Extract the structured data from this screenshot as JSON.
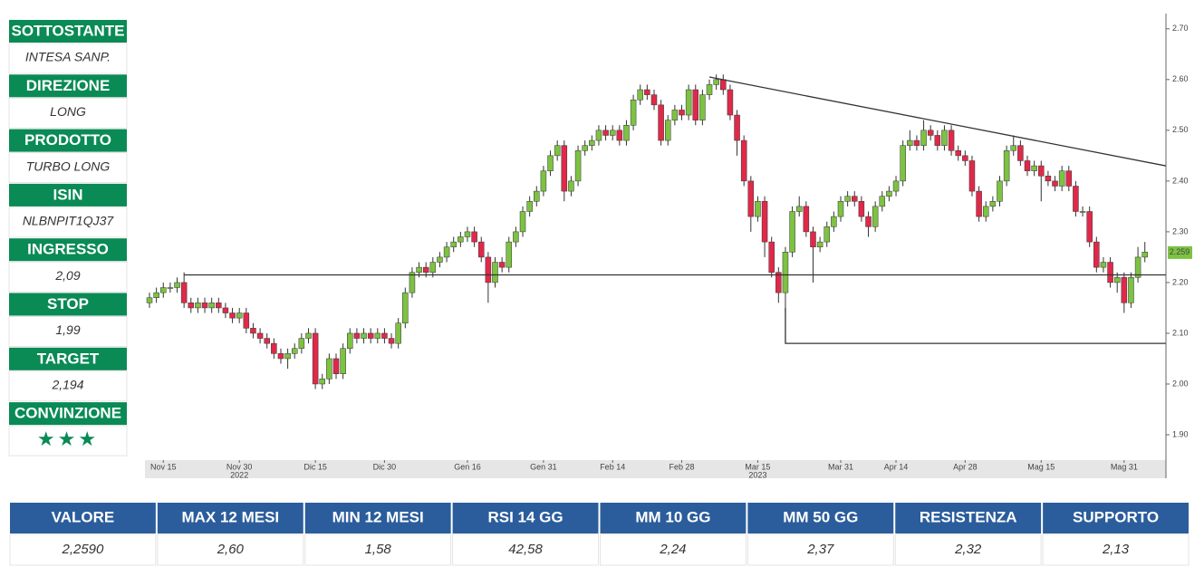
{
  "sidebar": [
    {
      "label": "SOTTOSTANTE",
      "value": "INTESA SANP."
    },
    {
      "label": "DIREZIONE",
      "value": "LONG"
    },
    {
      "label": "PRODOTTO",
      "value": "TURBO LONG"
    },
    {
      "label": "ISIN",
      "value": "NLBNPIT1QJ37"
    },
    {
      "label": "INGRESSO",
      "value": "2,09"
    },
    {
      "label": "STOP",
      "value": "1,99"
    },
    {
      "label": "TARGET",
      "value": "2,194"
    },
    {
      "label": "CONVINZIONE",
      "value": "★★★"
    }
  ],
  "chart_data": {
    "type": "candlestick",
    "categories": [
      null,
      null,
      "Nov 15",
      null,
      null,
      null,
      null,
      null,
      null,
      null,
      null,
      null,
      null,
      "Nov 30",
      null,
      null,
      null,
      null,
      null,
      null,
      null,
      null,
      null,
      null,
      "Dic 15",
      null,
      null,
      null,
      null,
      null,
      null,
      null,
      null,
      null,
      "Dic 30",
      null,
      null,
      null,
      null,
      null,
      null,
      null,
      null,
      null,
      null,
      null,
      "Gen 16",
      null,
      null,
      null,
      null,
      null,
      null,
      null,
      null,
      null,
      null,
      "Gen 31",
      null,
      null,
      null,
      null,
      null,
      null,
      null,
      null,
      null,
      "Feb 14",
      null,
      null,
      null,
      null,
      null,
      null,
      null,
      null,
      null,
      "Feb 28",
      null,
      null,
      null,
      null,
      null,
      null,
      null,
      null,
      null,
      null,
      "Mar 15",
      null,
      null,
      null,
      null,
      null,
      null,
      null,
      null,
      null,
      null,
      null,
      "Mar 31",
      null,
      null,
      null,
      null,
      null,
      null,
      null,
      "Apr 14",
      null,
      null,
      null,
      null,
      null,
      null,
      null,
      null,
      null,
      "Apr 28",
      null,
      null,
      null,
      null,
      null,
      null,
      null,
      null,
      null,
      null,
      "Mag 15",
      null,
      null,
      null,
      null,
      null,
      null,
      null,
      null,
      null,
      null,
      null,
      "Mag 31",
      null,
      null,
      null
    ],
    "year_labels": [
      {
        "index": 13,
        "label": "2022"
      },
      {
        "index": 88,
        "label": "2023"
      }
    ],
    "open": [
      2.16,
      2.17,
      2.18,
      2.19,
      2.19,
      2.2,
      2.16,
      2.15,
      2.16,
      2.15,
      2.16,
      2.15,
      2.14,
      2.13,
      2.14,
      2.11,
      2.1,
      2.09,
      2.08,
      2.06,
      2.05,
      2.06,
      2.07,
      2.09,
      2.1,
      2.0,
      2.01,
      2.05,
      2.02,
      2.07,
      2.1,
      2.09,
      2.1,
      2.09,
      2.1,
      2.09,
      2.08,
      2.12,
      2.18,
      2.22,
      2.23,
      2.22,
      2.24,
      2.25,
      2.27,
      2.28,
      2.29,
      2.3,
      2.28,
      2.25,
      2.2,
      2.24,
      2.23,
      2.28,
      2.3,
      2.34,
      2.36,
      2.38,
      2.42,
      2.45,
      2.47,
      2.38,
      2.4,
      2.46,
      2.47,
      2.48,
      2.5,
      2.49,
      2.5,
      2.48,
      2.51,
      2.56,
      2.58,
      2.57,
      2.55,
      2.48,
      2.52,
      2.54,
      2.53,
      2.58,
      2.52,
      2.57,
      2.59,
      2.6,
      2.58,
      2.53,
      2.48,
      2.4,
      2.33,
      2.36,
      2.28,
      2.22,
      2.18,
      2.26,
      2.34,
      2.35,
      2.3,
      2.27,
      2.28,
      2.31,
      2.33,
      2.36,
      2.37,
      2.36,
      2.33,
      2.31,
      2.35,
      2.37,
      2.38,
      2.4,
      2.47,
      2.48,
      2.47,
      2.5,
      2.49,
      2.47,
      2.5,
      2.46,
      2.45,
      2.44,
      2.38,
      2.33,
      2.35,
      2.36,
      2.4,
      2.46,
      2.47,
      2.44,
      2.42,
      2.43,
      2.41,
      2.4,
      2.39,
      2.42,
      2.39,
      2.34,
      2.34,
      2.28,
      2.23,
      2.24,
      2.2,
      2.21,
      2.16,
      2.21,
      2.25
    ],
    "high": [
      2.18,
      2.19,
      2.2,
      2.2,
      2.21,
      2.22,
      2.17,
      2.17,
      2.17,
      2.17,
      2.17,
      2.16,
      2.15,
      2.15,
      2.15,
      2.12,
      2.11,
      2.1,
      2.09,
      2.07,
      2.07,
      2.08,
      2.1,
      2.11,
      2.11,
      2.02,
      2.06,
      2.06,
      2.08,
      2.11,
      2.11,
      2.11,
      2.11,
      2.11,
      2.11,
      2.1,
      2.13,
      2.19,
      2.23,
      2.24,
      2.24,
      2.25,
      2.26,
      2.28,
      2.29,
      2.3,
      2.31,
      2.31,
      2.29,
      2.26,
      2.25,
      2.25,
      2.29,
      2.31,
      2.35,
      2.37,
      2.39,
      2.43,
      2.46,
      2.48,
      2.48,
      2.41,
      2.47,
      2.48,
      2.49,
      2.51,
      2.51,
      2.51,
      2.51,
      2.52,
      2.57,
      2.59,
      2.59,
      2.58,
      2.56,
      2.53,
      2.55,
      2.55,
      2.59,
      2.59,
      2.58,
      2.6,
      2.61,
      2.61,
      2.59,
      2.54,
      2.49,
      2.41,
      2.37,
      2.37,
      2.29,
      2.23,
      2.27,
      2.35,
      2.37,
      2.36,
      2.31,
      2.29,
      2.32,
      2.34,
      2.37,
      2.38,
      2.38,
      2.37,
      2.34,
      2.36,
      2.38,
      2.39,
      2.41,
      2.48,
      2.5,
      2.49,
      2.52,
      2.51,
      2.5,
      2.51,
      2.51,
      2.47,
      2.46,
      2.45,
      2.39,
      2.36,
      2.37,
      2.41,
      2.47,
      2.49,
      2.48,
      2.45,
      2.44,
      2.44,
      2.42,
      2.41,
      2.43,
      2.43,
      2.4,
      2.35,
      2.35,
      2.29,
      2.25,
      2.25,
      2.22,
      2.22,
      2.22,
      2.27,
      2.28
    ],
    "low": [
      2.15,
      2.16,
      2.17,
      2.18,
      2.18,
      2.15,
      2.14,
      2.14,
      2.14,
      2.14,
      2.14,
      2.13,
      2.12,
      2.12,
      2.1,
      2.09,
      2.08,
      2.07,
      2.05,
      2.04,
      2.03,
      2.05,
      2.06,
      2.08,
      1.99,
      1.99,
      2.0,
      2.01,
      2.01,
      2.06,
      2.08,
      2.08,
      2.08,
      2.08,
      2.08,
      2.07,
      2.07,
      2.11,
      2.17,
      2.21,
      2.21,
      2.21,
      2.23,
      2.24,
      2.26,
      2.27,
      2.28,
      2.27,
      2.24,
      2.16,
      2.19,
      2.22,
      2.22,
      2.27,
      2.29,
      2.33,
      2.35,
      2.37,
      2.41,
      2.44,
      2.36,
      2.37,
      2.39,
      2.45,
      2.46,
      2.47,
      2.48,
      2.48,
      2.47,
      2.47,
      2.5,
      2.55,
      2.56,
      2.54,
      2.47,
      2.47,
      2.51,
      2.52,
      2.52,
      2.51,
      2.51,
      2.56,
      2.58,
      2.57,
      2.52,
      2.45,
      2.39,
      2.3,
      2.32,
      2.25,
      2.21,
      2.16,
      2.14,
      2.25,
      2.33,
      2.29,
      2.2,
      2.26,
      2.27,
      2.3,
      2.32,
      2.35,
      2.35,
      2.32,
      2.29,
      2.3,
      2.34,
      2.36,
      2.37,
      2.39,
      2.46,
      2.46,
      2.46,
      2.48,
      2.46,
      2.46,
      2.45,
      2.44,
      2.43,
      2.37,
      2.32,
      2.32,
      2.34,
      2.35,
      2.39,
      2.45,
      2.43,
      2.41,
      2.41,
      2.36,
      2.39,
      2.38,
      2.38,
      2.38,
      2.33,
      2.33,
      2.27,
      2.22,
      2.22,
      2.19,
      2.18,
      2.14,
      2.15,
      2.2,
      2.24
    ],
    "close": [
      2.17,
      2.18,
      2.19,
      2.19,
      2.2,
      2.16,
      2.15,
      2.16,
      2.15,
      2.16,
      2.15,
      2.14,
      2.13,
      2.14,
      2.11,
      2.1,
      2.09,
      2.08,
      2.06,
      2.05,
      2.06,
      2.07,
      2.09,
      2.1,
      2.0,
      2.01,
      2.05,
      2.02,
      2.07,
      2.1,
      2.09,
      2.1,
      2.09,
      2.1,
      2.09,
      2.08,
      2.12,
      2.18,
      2.22,
      2.23,
      2.22,
      2.24,
      2.25,
      2.27,
      2.28,
      2.29,
      2.3,
      2.28,
      2.25,
      2.2,
      2.24,
      2.23,
      2.28,
      2.3,
      2.34,
      2.36,
      2.38,
      2.42,
      2.45,
      2.47,
      2.38,
      2.4,
      2.46,
      2.47,
      2.48,
      2.5,
      2.49,
      2.5,
      2.48,
      2.51,
      2.56,
      2.58,
      2.57,
      2.55,
      2.48,
      2.52,
      2.54,
      2.53,
      2.58,
      2.52,
      2.57,
      2.59,
      2.6,
      2.58,
      2.53,
      2.48,
      2.4,
      2.33,
      2.36,
      2.28,
      2.22,
      2.18,
      2.26,
      2.34,
      2.35,
      2.3,
      2.27,
      2.28,
      2.31,
      2.33,
      2.36,
      2.37,
      2.36,
      2.33,
      2.31,
      2.35,
      2.37,
      2.38,
      2.4,
      2.47,
      2.48,
      2.47,
      2.5,
      2.49,
      2.47,
      2.5,
      2.46,
      2.45,
      2.44,
      2.38,
      2.33,
      2.35,
      2.36,
      2.4,
      2.46,
      2.47,
      2.44,
      2.42,
      2.43,
      2.41,
      2.4,
      2.39,
      2.42,
      2.39,
      2.34,
      2.34,
      2.28,
      2.23,
      2.24,
      2.2,
      2.21,
      2.16,
      2.21,
      2.25,
      2.26
    ],
    "up_color": "#7dc242",
    "down_color": "#e0294a",
    "lines": [
      {
        "x": [
          5,
          147
        ],
        "y": [
          2.215,
          2.215
        ]
      },
      {
        "x": [
          81,
          147
        ],
        "y": [
          2.605,
          2.43
        ]
      },
      {
        "x": [
          92,
          92,
          147
        ],
        "y": [
          2.15,
          2.08,
          2.08
        ]
      }
    ],
    "last_price": 2.259,
    "ylim": [
      1.85,
      2.73
    ],
    "yticks": [
      {
        "value": 1.9,
        "label": "1.90"
      },
      {
        "value": 2.0,
        "label": "2.00"
      },
      {
        "value": 2.1,
        "label": "2.10"
      },
      {
        "value": 2.2,
        "label": "2.20"
      },
      {
        "value": 2.3,
        "label": "2.30"
      },
      {
        "value": 2.4,
        "label": "2.40"
      },
      {
        "value": 2.5,
        "label": "2.50"
      },
      {
        "value": 2.6,
        "label": "2.60"
      },
      {
        "value": 2.7,
        "label": "2.70"
      }
    ]
  },
  "table": {
    "headers": [
      "VALORE",
      "MAX 12 MESI",
      "MIN 12 MESI",
      "RSI 14 GG",
      "MM 10 GG",
      "MM 50 GG",
      "RESISTENZA",
      "SUPPORTO"
    ],
    "rows": [
      [
        "2,2590",
        "2,60",
        "1,58",
        "42,58",
        "2,24",
        "2,37",
        "2,32",
        "2,13"
      ]
    ]
  }
}
